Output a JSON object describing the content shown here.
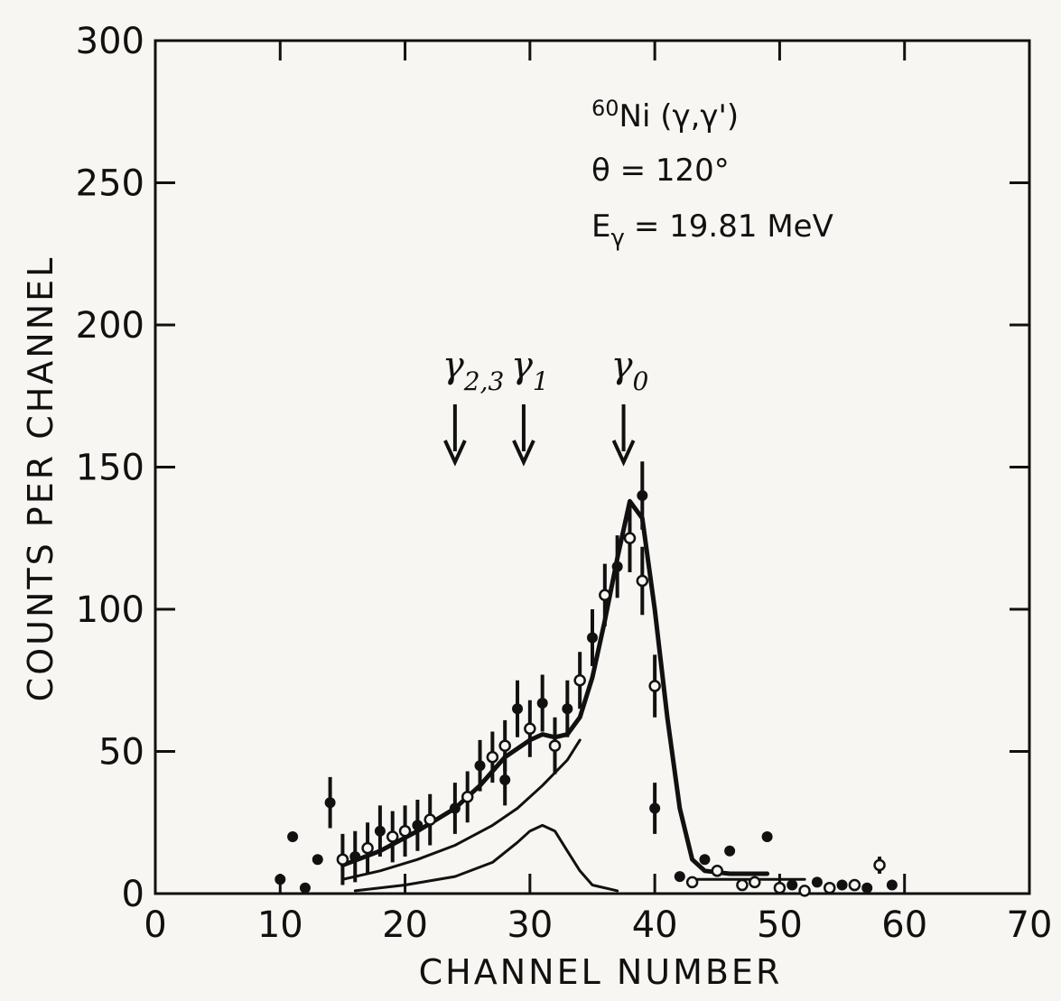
{
  "chart_data": {
    "type": "scatter",
    "xlabel": "CHANNEL NUMBER",
    "ylabel": "COUNTS PER CHANNEL",
    "xlim": [
      0,
      70
    ],
    "ylim": [
      0,
      300
    ],
    "x_ticks": [
      "0",
      "10",
      "20",
      "30",
      "40",
      "50",
      "60",
      "70"
    ],
    "y_ticks": [
      "0",
      "50",
      "100",
      "150",
      "200",
      "250",
      "300"
    ],
    "annotations": {
      "reaction_sup": "60",
      "reaction": "Ni (γ,γ')",
      "angle": "θ = 120°",
      "energy_symbol": "E",
      "energy_sub": "γ",
      "energy_value": "= 19.81 MeV"
    },
    "arrows": [
      {
        "label": "γ",
        "sub": "2,3",
        "x": 24
      },
      {
        "label": "γ",
        "sub": "1",
        "x": 29.5
      },
      {
        "label": "γ",
        "sub": "0",
        "x": 37.5
      }
    ],
    "series": [
      {
        "marker": "filled",
        "points": [
          [
            10,
            5,
            0
          ],
          [
            11,
            20,
            0
          ],
          [
            12,
            2,
            0
          ],
          [
            13,
            12,
            0
          ],
          [
            14,
            32,
            9
          ],
          [
            16,
            13,
            9
          ],
          [
            18,
            22,
            9
          ],
          [
            21,
            24,
            9
          ],
          [
            24,
            30,
            9
          ],
          [
            26,
            45,
            9
          ],
          [
            28,
            40,
            9
          ],
          [
            29,
            65,
            10
          ],
          [
            31,
            67,
            10
          ],
          [
            33,
            65,
            10
          ],
          [
            35,
            90,
            10
          ],
          [
            37,
            115,
            11
          ],
          [
            39,
            140,
            12
          ],
          [
            40,
            30,
            9
          ],
          [
            42,
            6,
            0
          ],
          [
            44,
            12,
            0
          ],
          [
            46,
            15,
            0
          ],
          [
            49,
            20,
            0
          ],
          [
            51,
            3,
            0
          ],
          [
            53,
            4,
            0
          ],
          [
            55,
            3,
            0
          ],
          [
            57,
            2,
            0
          ],
          [
            59,
            3,
            0
          ]
        ]
      },
      {
        "marker": "open",
        "points": [
          [
            15,
            12,
            9
          ],
          [
            17,
            16,
            9
          ],
          [
            19,
            20,
            9
          ],
          [
            20,
            22,
            9
          ],
          [
            22,
            26,
            9
          ],
          [
            25,
            34,
            9
          ],
          [
            27,
            48,
            9
          ],
          [
            28,
            52,
            9
          ],
          [
            30,
            58,
            10
          ],
          [
            32,
            52,
            10
          ],
          [
            34,
            75,
            10
          ],
          [
            36,
            105,
            11
          ],
          [
            38,
            125,
            12
          ],
          [
            39,
            110,
            12
          ],
          [
            40,
            73,
            11
          ],
          [
            43,
            4,
            0
          ],
          [
            45,
            8,
            0
          ],
          [
            47,
            3,
            0
          ],
          [
            48,
            4,
            0
          ],
          [
            50,
            2,
            0
          ],
          [
            52,
            1,
            0
          ],
          [
            54,
            2,
            0
          ],
          [
            56,
            3,
            0
          ],
          [
            58,
            10,
            3
          ]
        ]
      }
    ],
    "curves": [
      {
        "style": "solid-thick",
        "points": [
          [
            15,
            10
          ],
          [
            18,
            15
          ],
          [
            21,
            22
          ],
          [
            24,
            30
          ],
          [
            26,
            38
          ],
          [
            28,
            48
          ],
          [
            30,
            54
          ],
          [
            31,
            56
          ],
          [
            32,
            55
          ],
          [
            33,
            56
          ],
          [
            34,
            62
          ],
          [
            35,
            76
          ],
          [
            36,
            96
          ],
          [
            37,
            118
          ],
          [
            38,
            138
          ],
          [
            39,
            132
          ],
          [
            40,
            100
          ],
          [
            41,
            62
          ],
          [
            42,
            30
          ],
          [
            43,
            12
          ],
          [
            44,
            8
          ],
          [
            46,
            7
          ],
          [
            49,
            7
          ]
        ]
      },
      {
        "style": "solid",
        "points": [
          [
            15,
            5
          ],
          [
            18,
            8
          ],
          [
            21,
            12
          ],
          [
            24,
            17
          ],
          [
            27,
            24
          ],
          [
            29,
            30
          ],
          [
            31,
            38
          ],
          [
            33,
            47
          ],
          [
            34,
            54
          ]
        ]
      },
      {
        "style": "solid",
        "points": [
          [
            16,
            1
          ],
          [
            20,
            3
          ],
          [
            24,
            6
          ],
          [
            27,
            11
          ],
          [
            29,
            18
          ],
          [
            30,
            22
          ],
          [
            31,
            24
          ],
          [
            32,
            22
          ],
          [
            33,
            15
          ],
          [
            34,
            8
          ],
          [
            35,
            3
          ],
          [
            37,
            1
          ]
        ]
      },
      {
        "style": "solid",
        "points": [
          [
            43,
            5
          ],
          [
            52,
            5
          ]
        ]
      }
    ]
  }
}
